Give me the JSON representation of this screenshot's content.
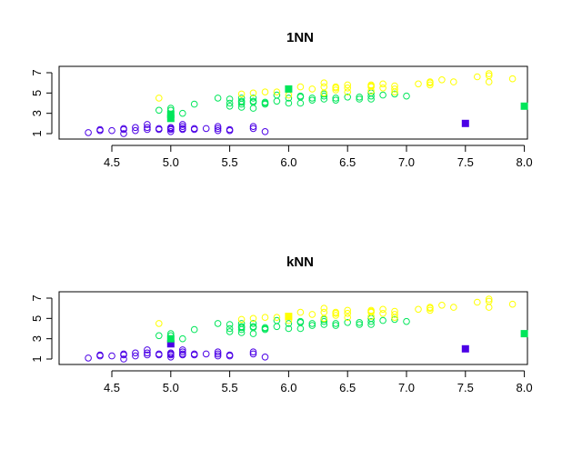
{
  "chart_data": [
    {
      "type": "scatter",
      "title": "1NN",
      "xlabel": "",
      "ylabel": "",
      "xlim": [
        4.3,
        8.0
      ],
      "ylim": [
        1,
        7
      ],
      "x_ticks": [
        "4.5",
        "5.0",
        "5.5",
        "6.0",
        "6.5",
        "7.0",
        "7.5",
        "8.0"
      ],
      "y_ticks": [
        "1",
        "3",
        "5",
        "7"
      ],
      "grid": false,
      "colors": {
        "class1": "#4b00e6",
        "class2": "#00e65a",
        "class3": "#ffff00"
      },
      "series": [
        {
          "class": "class1",
          "marker": "open-circle",
          "points": [
            [
              4.3,
              1.1
            ],
            [
              4.4,
              1.3
            ],
            [
              4.4,
              1.4
            ],
            [
              4.5,
              1.3
            ],
            [
              4.6,
              1.0
            ],
            [
              4.6,
              1.4
            ],
            [
              4.6,
              1.5
            ],
            [
              4.7,
              1.3
            ],
            [
              4.7,
              1.6
            ],
            [
              4.8,
              1.4
            ],
            [
              4.8,
              1.6
            ],
            [
              4.8,
              1.9
            ],
            [
              4.9,
              1.4
            ],
            [
              4.9,
              1.5
            ],
            [
              5.0,
              1.2
            ],
            [
              5.0,
              1.4
            ],
            [
              5.0,
              1.5
            ],
            [
              5.0,
              1.6
            ],
            [
              5.1,
              1.4
            ],
            [
              5.1,
              1.5
            ],
            [
              5.1,
              1.7
            ],
            [
              5.1,
              1.9
            ],
            [
              5.2,
              1.4
            ],
            [
              5.2,
              1.5
            ],
            [
              5.3,
              1.5
            ],
            [
              5.4,
              1.3
            ],
            [
              5.4,
              1.5
            ],
            [
              5.4,
              1.7
            ],
            [
              5.5,
              1.3
            ],
            [
              5.5,
              1.4
            ],
            [
              5.7,
              1.5
            ],
            [
              5.7,
              1.7
            ],
            [
              5.8,
              1.2
            ]
          ]
        },
        {
          "class": "class2",
          "marker": "open-circle",
          "points": [
            [
              4.9,
              3.3
            ],
            [
              5.0,
              3.3
            ],
            [
              5.0,
              3.5
            ],
            [
              5.1,
              3.0
            ],
            [
              5.2,
              3.9
            ],
            [
              5.4,
              4.5
            ],
            [
              5.5,
              3.7
            ],
            [
              5.5,
              4.0
            ],
            [
              5.5,
              4.4
            ],
            [
              5.6,
              3.6
            ],
            [
              5.6,
              3.9
            ],
            [
              5.6,
              4.1
            ],
            [
              5.6,
              4.2
            ],
            [
              5.6,
              4.5
            ],
            [
              5.7,
              3.5
            ],
            [
              5.7,
              4.1
            ],
            [
              5.7,
              4.2
            ],
            [
              5.7,
              4.5
            ],
            [
              5.8,
              3.9
            ],
            [
              5.8,
              4.0
            ],
            [
              5.8,
              4.1
            ],
            [
              5.9,
              4.2
            ],
            [
              5.9,
              4.8
            ],
            [
              6.0,
              4.0
            ],
            [
              6.0,
              4.5
            ],
            [
              6.1,
              4.0
            ],
            [
              6.1,
              4.6
            ],
            [
              6.1,
              4.7
            ],
            [
              6.2,
              4.3
            ],
            [
              6.2,
              4.5
            ],
            [
              6.3,
              4.4
            ],
            [
              6.3,
              4.7
            ],
            [
              6.3,
              4.9
            ],
            [
              6.4,
              4.3
            ],
            [
              6.4,
              4.5
            ],
            [
              6.5,
              4.6
            ],
            [
              6.6,
              4.4
            ],
            [
              6.6,
              4.6
            ],
            [
              6.7,
              4.4
            ],
            [
              6.7,
              4.7
            ],
            [
              6.7,
              5.0
            ],
            [
              6.8,
              4.8
            ],
            [
              6.9,
              4.9
            ],
            [
              7.0,
              4.7
            ]
          ]
        },
        {
          "class": "class3",
          "marker": "open-circle",
          "points": [
            [
              4.9,
              4.5
            ],
            [
              5.6,
              4.9
            ],
            [
              5.7,
              5.0
            ],
            [
              5.8,
              5.1
            ],
            [
              5.9,
              5.1
            ],
            [
              6.0,
              4.8
            ],
            [
              6.1,
              5.6
            ],
            [
              6.2,
              5.4
            ],
            [
              6.3,
              5.0
            ],
            [
              6.3,
              5.6
            ],
            [
              6.3,
              6.0
            ],
            [
              6.4,
              5.3
            ],
            [
              6.4,
              5.5
            ],
            [
              6.4,
              5.6
            ],
            [
              6.5,
              5.1
            ],
            [
              6.5,
              5.5
            ],
            [
              6.5,
              5.8
            ],
            [
              6.7,
              5.2
            ],
            [
              6.7,
              5.6
            ],
            [
              6.7,
              5.7
            ],
            [
              6.7,
              5.8
            ],
            [
              6.8,
              5.5
            ],
            [
              6.8,
              5.9
            ],
            [
              6.9,
              5.1
            ],
            [
              6.9,
              5.4
            ],
            [
              6.9,
              5.7
            ],
            [
              7.1,
              5.9
            ],
            [
              7.2,
              5.8
            ],
            [
              7.2,
              6.0
            ],
            [
              7.2,
              6.1
            ],
            [
              7.3,
              6.3
            ],
            [
              7.4,
              6.1
            ],
            [
              7.6,
              6.6
            ],
            [
              7.7,
              6.1
            ],
            [
              7.7,
              6.7
            ],
            [
              7.7,
              6.9
            ],
            [
              7.9,
              6.4
            ]
          ]
        }
      ],
      "highlighted_points": [
        {
          "class": "class2",
          "marker": "filled-square",
          "x": 5.0,
          "y": 2.5
        },
        {
          "class": "class2",
          "marker": "filled-square",
          "x": 5.0,
          "y": 2.9
        },
        {
          "class": "class2",
          "marker": "filled-square",
          "x": 6.0,
          "y": 5.4
        },
        {
          "class": "class1",
          "marker": "filled-square",
          "x": 7.5,
          "y": 2.0
        },
        {
          "class": "class2",
          "marker": "filled-square",
          "x": 8.0,
          "y": 3.7
        }
      ]
    },
    {
      "type": "scatter",
      "title": "kNN",
      "xlabel": "",
      "ylabel": "",
      "xlim": [
        4.3,
        8.0
      ],
      "ylim": [
        1,
        7
      ],
      "x_ticks": [
        "4.5",
        "5.0",
        "5.5",
        "6.0",
        "6.5",
        "7.0",
        "7.5",
        "8.0"
      ],
      "y_ticks": [
        "1",
        "3",
        "5",
        "7"
      ],
      "grid": false,
      "colors": {
        "class1": "#4b00e6",
        "class2": "#00e65a",
        "class3": "#ffff00"
      },
      "series": [
        {
          "class": "class1",
          "marker": "open-circle",
          "points": [
            [
              4.3,
              1.1
            ],
            [
              4.4,
              1.3
            ],
            [
              4.4,
              1.4
            ],
            [
              4.5,
              1.3
            ],
            [
              4.6,
              1.0
            ],
            [
              4.6,
              1.4
            ],
            [
              4.6,
              1.5
            ],
            [
              4.7,
              1.3
            ],
            [
              4.7,
              1.6
            ],
            [
              4.8,
              1.4
            ],
            [
              4.8,
              1.6
            ],
            [
              4.8,
              1.9
            ],
            [
              4.9,
              1.4
            ],
            [
              4.9,
              1.5
            ],
            [
              5.0,
              1.2
            ],
            [
              5.0,
              1.4
            ],
            [
              5.0,
              1.5
            ],
            [
              5.0,
              1.6
            ],
            [
              5.1,
              1.4
            ],
            [
              5.1,
              1.5
            ],
            [
              5.1,
              1.7
            ],
            [
              5.1,
              1.9
            ],
            [
              5.2,
              1.4
            ],
            [
              5.2,
              1.5
            ],
            [
              5.3,
              1.5
            ],
            [
              5.4,
              1.3
            ],
            [
              5.4,
              1.5
            ],
            [
              5.4,
              1.7
            ],
            [
              5.5,
              1.3
            ],
            [
              5.5,
              1.4
            ],
            [
              5.7,
              1.5
            ],
            [
              5.7,
              1.7
            ],
            [
              5.8,
              1.2
            ]
          ]
        },
        {
          "class": "class2",
          "marker": "open-circle",
          "points": [
            [
              4.9,
              3.3
            ],
            [
              5.0,
              3.3
            ],
            [
              5.0,
              3.5
            ],
            [
              5.1,
              3.0
            ],
            [
              5.2,
              3.9
            ],
            [
              5.4,
              4.5
            ],
            [
              5.5,
              3.7
            ],
            [
              5.5,
              4.0
            ],
            [
              5.5,
              4.4
            ],
            [
              5.6,
              3.6
            ],
            [
              5.6,
              3.9
            ],
            [
              5.6,
              4.1
            ],
            [
              5.6,
              4.2
            ],
            [
              5.6,
              4.5
            ],
            [
              5.7,
              3.5
            ],
            [
              5.7,
              4.1
            ],
            [
              5.7,
              4.2
            ],
            [
              5.7,
              4.5
            ],
            [
              5.8,
              3.9
            ],
            [
              5.8,
              4.0
            ],
            [
              5.8,
              4.1
            ],
            [
              5.9,
              4.2
            ],
            [
              5.9,
              4.8
            ],
            [
              6.0,
              4.0
            ],
            [
              6.0,
              4.5
            ],
            [
              6.1,
              4.0
            ],
            [
              6.1,
              4.6
            ],
            [
              6.1,
              4.7
            ],
            [
              6.2,
              4.3
            ],
            [
              6.2,
              4.5
            ],
            [
              6.3,
              4.4
            ],
            [
              6.3,
              4.7
            ],
            [
              6.3,
              4.9
            ],
            [
              6.4,
              4.3
            ],
            [
              6.4,
              4.5
            ],
            [
              6.5,
              4.6
            ],
            [
              6.6,
              4.4
            ],
            [
              6.6,
              4.6
            ],
            [
              6.7,
              4.4
            ],
            [
              6.7,
              4.7
            ],
            [
              6.7,
              5.0
            ],
            [
              6.8,
              4.8
            ],
            [
              6.9,
              4.9
            ],
            [
              7.0,
              4.7
            ]
          ]
        },
        {
          "class": "class3",
          "marker": "open-circle",
          "points": [
            [
              4.9,
              4.5
            ],
            [
              5.6,
              4.9
            ],
            [
              5.7,
              5.0
            ],
            [
              5.8,
              5.1
            ],
            [
              5.9,
              5.1
            ],
            [
              6.0,
              4.8
            ],
            [
              6.1,
              5.6
            ],
            [
              6.2,
              5.4
            ],
            [
              6.3,
              5.0
            ],
            [
              6.3,
              5.6
            ],
            [
              6.3,
              6.0
            ],
            [
              6.4,
              5.3
            ],
            [
              6.4,
              5.5
            ],
            [
              6.4,
              5.6
            ],
            [
              6.5,
              5.1
            ],
            [
              6.5,
              5.5
            ],
            [
              6.5,
              5.8
            ],
            [
              6.7,
              5.2
            ],
            [
              6.7,
              5.6
            ],
            [
              6.7,
              5.7
            ],
            [
              6.7,
              5.8
            ],
            [
              6.8,
              5.5
            ],
            [
              6.8,
              5.9
            ],
            [
              6.9,
              5.1
            ],
            [
              6.9,
              5.4
            ],
            [
              6.9,
              5.7
            ],
            [
              7.1,
              5.9
            ],
            [
              7.2,
              5.8
            ],
            [
              7.2,
              6.0
            ],
            [
              7.2,
              6.1
            ],
            [
              7.3,
              6.3
            ],
            [
              7.4,
              6.1
            ],
            [
              7.6,
              6.6
            ],
            [
              7.7,
              6.1
            ],
            [
              7.7,
              6.7
            ],
            [
              7.7,
              6.9
            ],
            [
              7.9,
              6.4
            ]
          ]
        }
      ],
      "highlighted_points": [
        {
          "class": "class1",
          "marker": "filled-square",
          "x": 5.0,
          "y": 2.5
        },
        {
          "class": "class2",
          "marker": "filled-square",
          "x": 5.0,
          "y": 3.0
        },
        {
          "class": "class3",
          "marker": "filled-square",
          "x": 6.0,
          "y": 5.2
        },
        {
          "class": "class1",
          "marker": "filled-square",
          "x": 7.5,
          "y": 2.0
        },
        {
          "class": "class2",
          "marker": "filled-square",
          "x": 8.0,
          "y": 3.5
        }
      ]
    }
  ]
}
